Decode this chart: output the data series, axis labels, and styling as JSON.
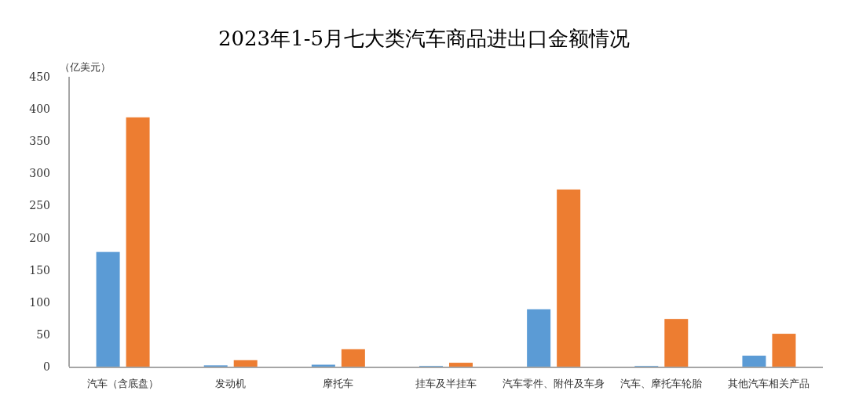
{
  "chart_data": {
    "type": "bar",
    "title": "2023年1-5月七大类汽车商品进出口金额情况",
    "ylabel": "（亿美元）",
    "categories": [
      "汽车（含底盘）",
      "发动机",
      "摩托车",
      "挂车及半挂车",
      "汽车零件、附件及车身",
      "汽车、摩托车轮胎",
      "其他汽车相关产品"
    ],
    "series": [
      {
        "color": "#5b9bd5",
        "values": [
          178,
          2,
          3,
          1,
          89,
          1,
          17
        ]
      },
      {
        "color": "#ed7d31",
        "values": [
          387,
          10,
          27,
          6,
          275,
          74,
          51
        ]
      }
    ],
    "ylim": [
      0,
      450
    ],
    "yticks": [
      0,
      50,
      100,
      150,
      200,
      250,
      300,
      350,
      400,
      450
    ],
    "grid": false
  }
}
